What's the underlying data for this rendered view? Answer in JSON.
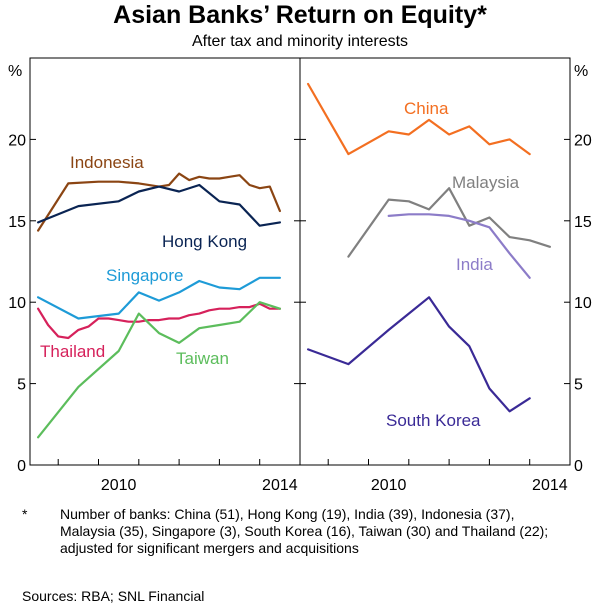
{
  "header": {
    "title": "Asian Banks’ Return on Equity*",
    "subtitle": "After tax and minority interests"
  },
  "footer": {
    "footnote_marker": "*",
    "footnote_text": "Number of banks: China (51), Hong Kong (19), India (39), Indonesia (37), Malaysia (35), Singapore (3), South Korea (16), Taiwan (30) and Thailand (22); adjusted for significant mergers and acquisitions",
    "sources": "Sources:  RBA; SNL Financial"
  },
  "chart_data": [
    {
      "type": "line",
      "panel": "left",
      "ylabel": "%",
      "ylim": [
        0,
        25
      ],
      "yticks": [
        0,
        5,
        10,
        15,
        20
      ],
      "xlim": [
        2008.3,
        2015.0
      ],
      "xticks": [
        2010,
        2014
      ],
      "series": [
        {
          "name": "Indonesia",
          "color": "#8B4513",
          "x": [
            2008.5,
            2009.25,
            2010,
            2010.5,
            2011,
            2011.5,
            2011.75,
            2012,
            2012.25,
            2012.5,
            2012.75,
            2013,
            2013.25,
            2013.5,
            2013.75,
            2014,
            2014.25,
            2014.5
          ],
          "values": [
            14.4,
            17.3,
            17.4,
            17.4,
            17.3,
            17.1,
            17.2,
            17.9,
            17.5,
            17.7,
            17.6,
            17.6,
            17.7,
            17.8,
            17.2,
            17.0,
            17.1,
            15.6
          ]
        },
        {
          "name": "Hong Kong",
          "color": "#0A2453",
          "x": [
            2008.5,
            2009.5,
            2010.5,
            2011,
            2011.5,
            2012,
            2012.5,
            2013,
            2013.5,
            2014,
            2014.5
          ],
          "values": [
            14.9,
            15.9,
            16.2,
            16.8,
            17.1,
            16.8,
            17.2,
            16.2,
            16.0,
            14.7,
            14.9
          ]
        },
        {
          "name": "Singapore",
          "color": "#1E9BD7",
          "x": [
            2008.5,
            2009.5,
            2010.5,
            2011,
            2011.5,
            2012,
            2012.5,
            2013,
            2013.5,
            2014,
            2014.5
          ],
          "values": [
            10.3,
            9.0,
            9.3,
            10.6,
            10.1,
            10.6,
            11.3,
            10.9,
            10.8,
            11.5,
            11.5
          ]
        },
        {
          "name": "Thailand",
          "color": "#D6215B",
          "x": [
            2008.5,
            2008.75,
            2009,
            2009.25,
            2009.5,
            2009.75,
            2010,
            2010.25,
            2010.5,
            2010.75,
            2011,
            2011.25,
            2011.5,
            2011.75,
            2012,
            2012.25,
            2012.5,
            2012.75,
            2013,
            2013.25,
            2013.5,
            2013.75,
            2014,
            2014.25,
            2014.5
          ],
          "values": [
            9.6,
            8.6,
            7.9,
            7.8,
            8.3,
            8.5,
            9.0,
            9.0,
            8.9,
            8.8,
            8.8,
            8.9,
            8.9,
            9.0,
            9.0,
            9.2,
            9.3,
            9.5,
            9.6,
            9.6,
            9.7,
            9.7,
            9.9,
            9.6,
            9.6
          ]
        },
        {
          "name": "Taiwan",
          "color": "#5CBD5C",
          "x": [
            2008.5,
            2009.5,
            2010.5,
            2011,
            2011.5,
            2012,
            2012.5,
            2013,
            2013.5,
            2014,
            2014.5
          ],
          "values": [
            1.7,
            4.8,
            7.0,
            9.3,
            8.1,
            7.5,
            8.4,
            8.6,
            8.8,
            10.0,
            9.6
          ]
        }
      ]
    },
    {
      "type": "line",
      "panel": "right",
      "ylabel": "%",
      "ylim": [
        0,
        25
      ],
      "yticks": [
        0,
        5,
        10,
        15,
        20
      ],
      "xlim": [
        2008.3,
        2015.0
      ],
      "xticks": [
        2010,
        2014
      ],
      "series": [
        {
          "name": "China",
          "color": "#F36F21",
          "x": [
            2008.5,
            2009.5,
            2010.5,
            2011,
            2011.5,
            2012,
            2012.5,
            2013,
            2013.5,
            2014
          ],
          "values": [
            23.4,
            19.1,
            20.5,
            20.3,
            21.2,
            20.3,
            20.8,
            19.7,
            20.0,
            19.1
          ]
        },
        {
          "name": "Malaysia",
          "color": "#808080",
          "x": [
            2009.5,
            2010.5,
            2011,
            2011.5,
            2012,
            2012.5,
            2013,
            2013.5,
            2014,
            2014.5
          ],
          "values": [
            12.8,
            16.3,
            16.2,
            15.7,
            17.0,
            14.7,
            15.2,
            14.0,
            13.8,
            13.4
          ]
        },
        {
          "name": "India",
          "color": "#8C7CC8",
          "x": [
            2010.5,
            2011,
            2011.5,
            2012,
            2012.5,
            2013,
            2013.5,
            2014
          ],
          "values": [
            15.3,
            15.4,
            15.4,
            15.3,
            15.0,
            14.6,
            13.0,
            11.5
          ]
        },
        {
          "name": "South Korea",
          "color": "#3A2A96",
          "x": [
            2008.5,
            2009.5,
            2010.5,
            2011,
            2011.5,
            2012,
            2012.5,
            2013,
            2013.5,
            2014
          ],
          "values": [
            7.1,
            6.2,
            8.3,
            9.3,
            10.3,
            8.5,
            7.3,
            4.7,
            3.3,
            4.1
          ]
        }
      ]
    }
  ]
}
